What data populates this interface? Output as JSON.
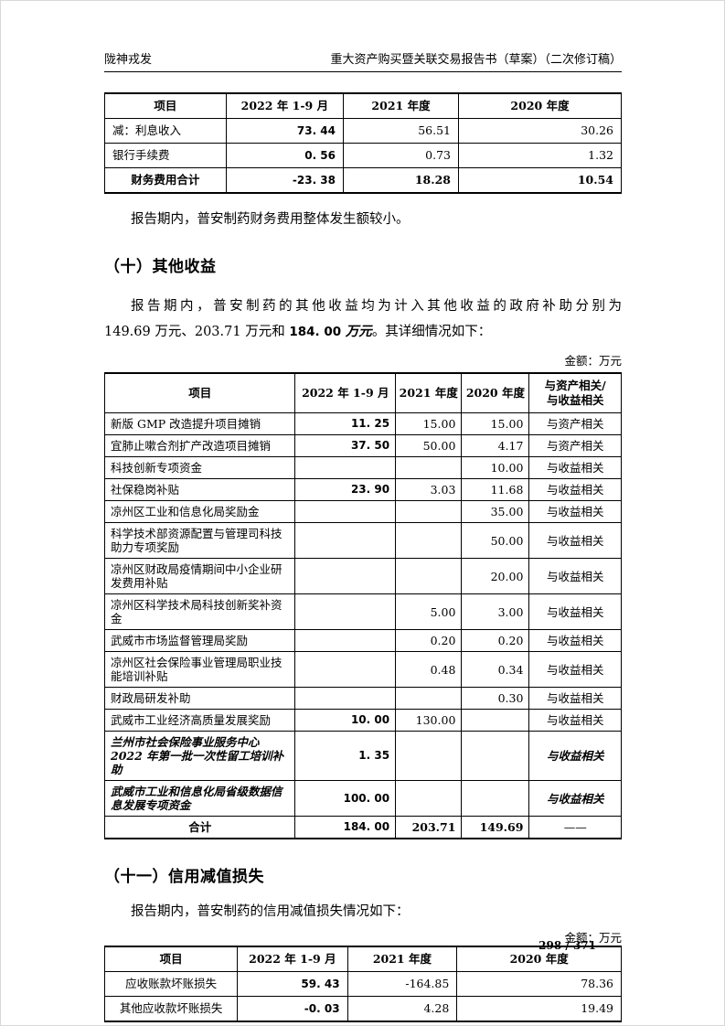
{
  "header": {
    "left": "陇神戎发",
    "right": "重大资产购买暨关联交易报告书（草案）（二次修订稿）"
  },
  "colors": {
    "text": "#000000",
    "background": "#ffffff",
    "rule": "#000000"
  },
  "finance_table": {
    "headers": [
      "项目",
      "2022 年 1-9 月",
      "2021 年度",
      "2020 年度"
    ],
    "rows": [
      {
        "cells": [
          "减：利息收入",
          "73. 44",
          "56.51",
          "30.26"
        ],
        "style": ""
      },
      {
        "cells": [
          "银行手续费",
          "0. 56",
          "0.73",
          "1.32"
        ],
        "style": ""
      },
      {
        "cells": [
          "财务费用合计",
          "-23. 38",
          "18.28",
          "10.54"
        ],
        "style": "total"
      }
    ]
  },
  "para1": "报告期内，普安制药财务费用整体发生额较小。",
  "section10": {
    "title": "（十）其他收益",
    "para_line1": "报告期内，普安制药的其他收益均为计入其他收益的政府补助分别为",
    "para_line2_pre": "149.69 万元、203.71 万元和 ",
    "para_line2_bold_num": "184. 00 ",
    "para_line2_bold_unit": "万元",
    "para_line2_post": "。其详细情况如下：",
    "unit": "金额：万元"
  },
  "income_table": {
    "headers": [
      "项目",
      "2022 年 1-9 月",
      "2021 年度",
      "2020 年度",
      [
        "与资产相关/",
        "与收益相关"
      ]
    ],
    "rows": [
      {
        "cells": [
          "新版 GMP 改造提升项目摊销",
          "11. 25",
          "15.00",
          "15.00",
          "与资产相关"
        ],
        "style": ""
      },
      {
        "cells": [
          "宜肺止嗽合剂扩产改造项目摊销",
          "37. 50",
          "50.00",
          "4.17",
          "与资产相关"
        ],
        "style": ""
      },
      {
        "cells": [
          "科技创新专项资金",
          "",
          "",
          "10.00",
          "与收益相关"
        ],
        "style": ""
      },
      {
        "cells": [
          "社保稳岗补贴",
          "23. 90",
          "3.03",
          "11.68",
          "与收益相关"
        ],
        "style": ""
      },
      {
        "cells": [
          "凉州区工业和信息化局奖励金",
          "",
          "",
          "35.00",
          "与收益相关"
        ],
        "style": ""
      },
      {
        "cells": [
          "科学技术部资源配置与管理司科技助力专项奖励",
          "",
          "",
          "50.00",
          "与收益相关"
        ],
        "style": ""
      },
      {
        "cells": [
          "凉州区财政局疫情期间中小企业研发费用补贴",
          "",
          "",
          "20.00",
          "与收益相关"
        ],
        "style": ""
      },
      {
        "cells": [
          "凉州区科学技术局科技创新奖补资金",
          "",
          "5.00",
          "3.00",
          "与收益相关"
        ],
        "style": ""
      },
      {
        "cells": [
          "武威市市场监督管理局奖励",
          "",
          "0.20",
          "0.20",
          "与收益相关"
        ],
        "style": ""
      },
      {
        "cells": [
          "凉州区社会保险事业管理局职业技能培训补贴",
          "",
          "0.48",
          "0.34",
          "与收益相关"
        ],
        "style": ""
      },
      {
        "cells": [
          "财政局研发补助",
          "",
          "",
          "0.30",
          "与收益相关"
        ],
        "style": ""
      },
      {
        "cells": [
          "武威市工业经济高质量发展奖励",
          "10. 00",
          "130.00",
          "",
          "与收益相关"
        ],
        "style": ""
      },
      {
        "cells": [
          "兰州市社会保险事业服务中心 2022 年第一批一次性留工培训补助",
          "1. 35",
          "",
          "",
          "与收益相关"
        ],
        "style": "kai"
      },
      {
        "cells": [
          "武威市工业和信息化局省级数据信息发展专项资金",
          "100. 00",
          "",
          "",
          "与收益相关"
        ],
        "style": "kai"
      },
      {
        "cells": [
          "合计",
          "184. 00",
          "203.71",
          "149.69",
          "——"
        ],
        "style": "total"
      }
    ]
  },
  "section11": {
    "title": "（十一）信用减值损失",
    "para": "报告期内，普安制药的信用减值损失情况如下：",
    "unit": "金额：万元"
  },
  "credit_table": {
    "headers": [
      "项目",
      "2022 年 1-9 月",
      "2021 年度",
      "2020 年度"
    ],
    "rows": [
      {
        "cells": [
          "应收账款坏账损失",
          "59. 43",
          "-164.85",
          "78.36"
        ],
        "style": ""
      },
      {
        "cells": [
          "其他应收款坏账损失",
          "-0. 03",
          "4.28",
          "19.49"
        ],
        "style": ""
      }
    ]
  },
  "footer": {
    "page": "298 / 371"
  }
}
